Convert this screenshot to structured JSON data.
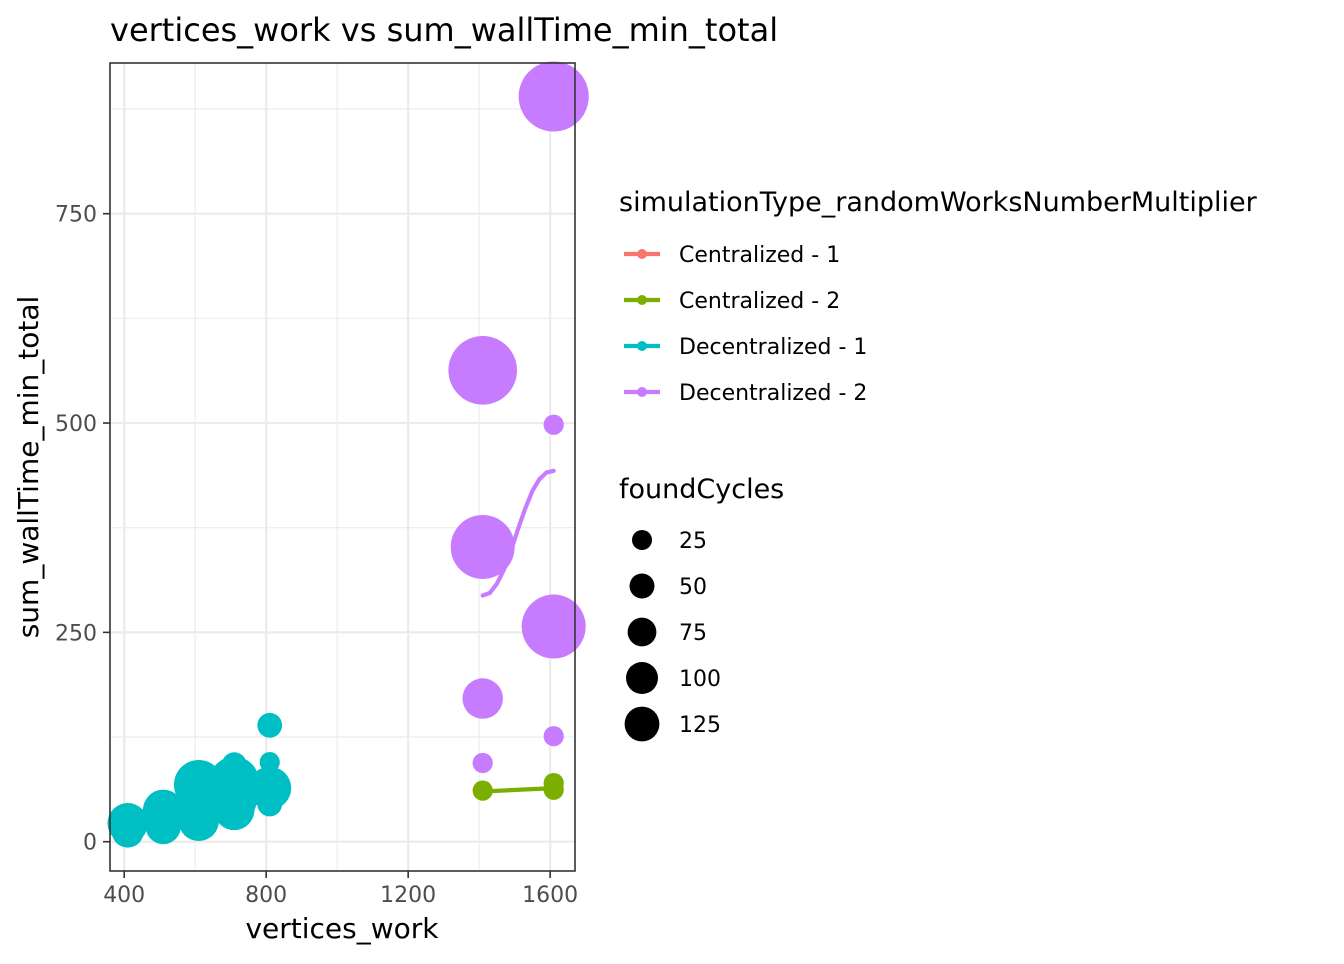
{
  "chart_data": {
    "type": "scatter",
    "title": "vertices_work  vs  sum_wallTime_min_total",
    "xlabel": "vertices_work",
    "ylabel": "sum_wallTime_min_total",
    "xlim": [
      360,
      1670
    ],
    "ylim": [
      -35,
      930
    ],
    "xticks": [
      400,
      800,
      1200,
      1600
    ],
    "yticks": [
      0,
      250,
      500,
      750
    ],
    "grid": true,
    "legend_position": "right",
    "color_legend": {
      "title": "simulationType_randomWorksNumberMultiplier",
      "entries": [
        "Centralized - 1",
        "Centralized - 2",
        "Decentralized - 1",
        "Decentralized - 2"
      ]
    },
    "size_legend": {
      "title": "foundCycles",
      "entries": [
        25,
        50,
        75,
        100,
        125
      ]
    },
    "series": [
      {
        "name": "Centralized - 1",
        "color": "#F8766D",
        "points": [
          {
            "x": 410,
            "y": 22,
            "size": 25
          },
          {
            "x": 510,
            "y": 48,
            "size": 10
          },
          {
            "x": 610,
            "y": 62,
            "size": 10
          },
          {
            "x": 710,
            "y": 55,
            "size": 20
          },
          {
            "x": 810,
            "y": 58,
            "size": 10
          }
        ],
        "trend": [
          [
            410,
            20
          ],
          [
            510,
            33
          ],
          [
            610,
            45
          ],
          [
            710,
            54
          ],
          [
            810,
            57
          ]
        ]
      },
      {
        "name": "Centralized - 2",
        "color": "#7CAE00",
        "points": [
          {
            "x": 1410,
            "y": 61,
            "size": 10
          },
          {
            "x": 1610,
            "y": 62,
            "size": 10
          },
          {
            "x": 1610,
            "y": 70,
            "size": 10
          }
        ],
        "trend": [
          [
            1410,
            60
          ],
          [
            1610,
            64
          ]
        ]
      },
      {
        "name": "Decentralized - 1",
        "color": "#00BFC4",
        "points": [
          {
            "x": 410,
            "y": 12,
            "size": 25
          },
          {
            "x": 410,
            "y": 22,
            "size": 40
          },
          {
            "x": 510,
            "y": 18,
            "size": 30
          },
          {
            "x": 510,
            "y": 32,
            "size": 45
          },
          {
            "x": 510,
            "y": 38,
            "size": 40
          },
          {
            "x": 610,
            "y": 25,
            "size": 40
          },
          {
            "x": 610,
            "y": 40,
            "size": 50
          },
          {
            "x": 610,
            "y": 50,
            "size": 40
          },
          {
            "x": 610,
            "y": 68,
            "size": 60
          },
          {
            "x": 710,
            "y": 38,
            "size": 40
          },
          {
            "x": 710,
            "y": 50,
            "size": 50
          },
          {
            "x": 710,
            "y": 72,
            "size": 60
          },
          {
            "x": 710,
            "y": 92,
            "size": 15
          },
          {
            "x": 810,
            "y": 45,
            "size": 15
          },
          {
            "x": 810,
            "y": 64,
            "size": 45
          },
          {
            "x": 810,
            "y": 95,
            "size": 10
          },
          {
            "x": 810,
            "y": 139,
            "size": 15
          }
        ],
        "trend": [
          [
            410,
            15
          ],
          [
            510,
            28
          ],
          [
            610,
            45
          ],
          [
            710,
            62
          ],
          [
            810,
            85
          ]
        ]
      },
      {
        "name": "Decentralized - 2",
        "color": "#C77CFF",
        "points": [
          {
            "x": 1410,
            "y": 94,
            "size": 10
          },
          {
            "x": 1410,
            "y": 171,
            "size": 40
          },
          {
            "x": 1410,
            "y": 352,
            "size": 100
          },
          {
            "x": 1410,
            "y": 563,
            "size": 115
          },
          {
            "x": 1610,
            "y": 126,
            "size": 10
          },
          {
            "x": 1610,
            "y": 257,
            "size": 100
          },
          {
            "x": 1610,
            "y": 498,
            "size": 10
          },
          {
            "x": 1610,
            "y": 890,
            "size": 120
          }
        ],
        "trend": [
          [
            1410,
            294
          ],
          [
            1430,
            297
          ],
          [
            1450,
            308
          ],
          [
            1470,
            325
          ],
          [
            1490,
            348
          ],
          [
            1510,
            374
          ],
          [
            1530,
            398
          ],
          [
            1550,
            419
          ],
          [
            1570,
            433
          ],
          [
            1590,
            441
          ],
          [
            1610,
            443
          ]
        ]
      }
    ]
  }
}
